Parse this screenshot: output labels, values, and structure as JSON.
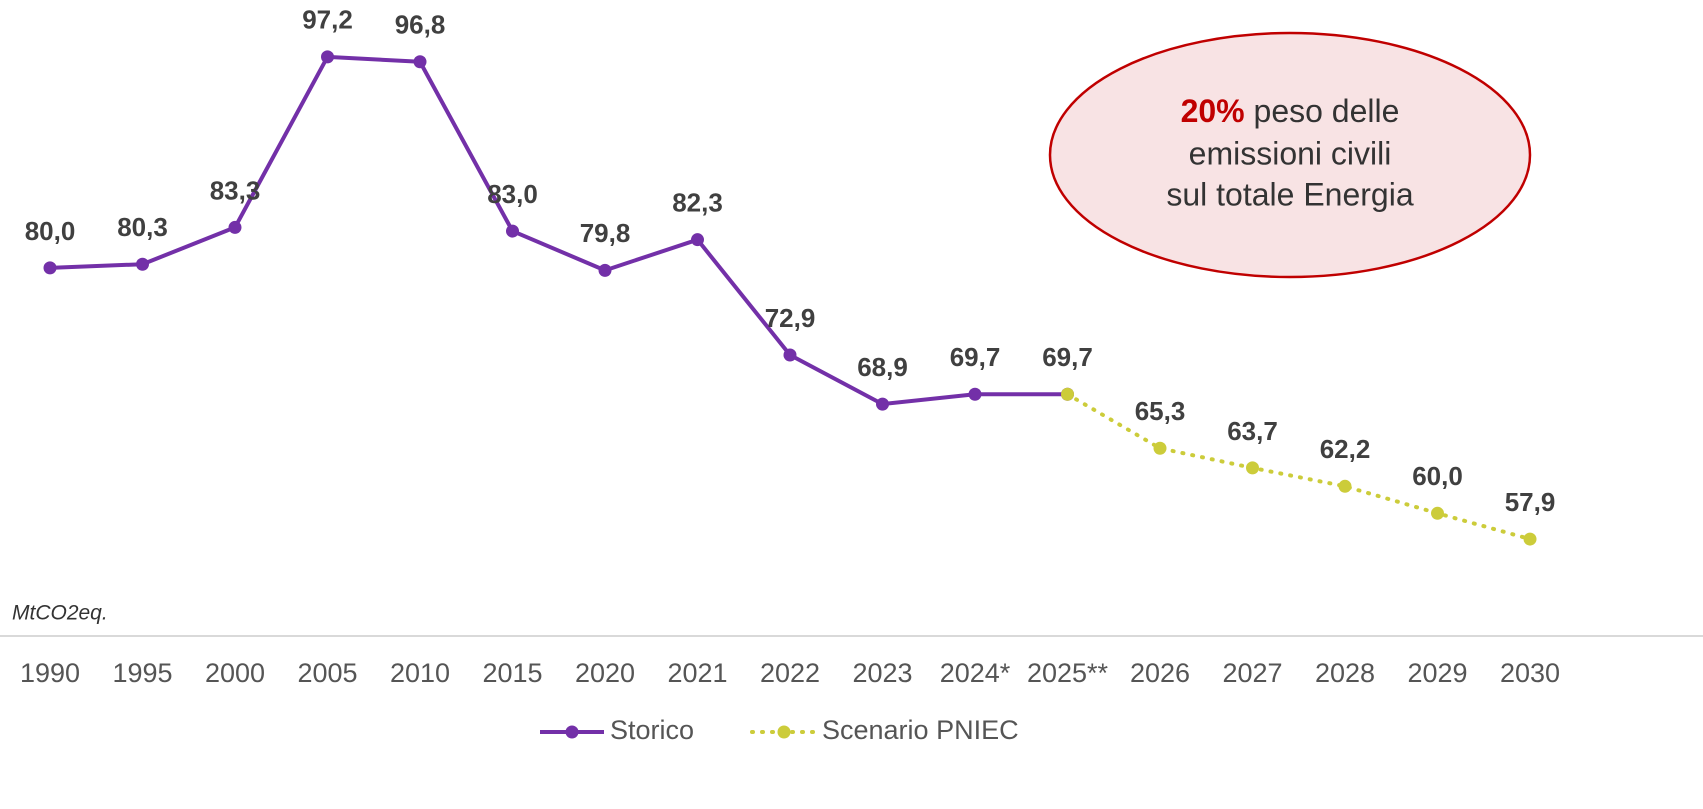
{
  "chart_data": {
    "type": "line",
    "y_label": "MtCO2eq.",
    "categories": [
      "1990",
      "1995",
      "2000",
      "2005",
      "2010",
      "2015",
      "2020",
      "2021",
      "2022",
      "2023",
      "2024*",
      "2025**",
      "2026",
      "2027",
      "2028",
      "2029",
      "2030"
    ],
    "series": [
      {
        "name": "Storico",
        "color": "#7330a8",
        "style": "solid",
        "values": [
          80.0,
          80.3,
          83.3,
          97.2,
          96.8,
          83.0,
          79.8,
          82.3,
          72.9,
          68.9,
          69.7,
          69.7,
          null,
          null,
          null,
          null,
          null
        ],
        "value_labels": [
          "80,0",
          "80,3",
          "83,3",
          "97,2",
          "96,8",
          "83,0",
          "79,8",
          "82,3",
          "72,9",
          "68,9",
          "69,7",
          "69,7",
          null,
          null,
          null,
          null,
          null
        ]
      },
      {
        "name": "Scenario PNIEC",
        "color": "#cccc3a",
        "style": "dotted",
        "values": [
          null,
          null,
          null,
          null,
          null,
          null,
          null,
          null,
          null,
          null,
          null,
          69.7,
          65.3,
          63.7,
          62.2,
          60.0,
          57.9
        ],
        "value_labels": [
          null,
          null,
          null,
          null,
          null,
          null,
          null,
          null,
          null,
          null,
          null,
          null,
          "65,3",
          "63,7",
          "62,2",
          "60,0",
          "57,9"
        ]
      }
    ],
    "ylim": [
      50,
      100
    ],
    "annotation": {
      "highlight": "20%",
      "lines": [
        "peso delle",
        "emissioni civili",
        "sul totale Energia"
      ]
    }
  }
}
